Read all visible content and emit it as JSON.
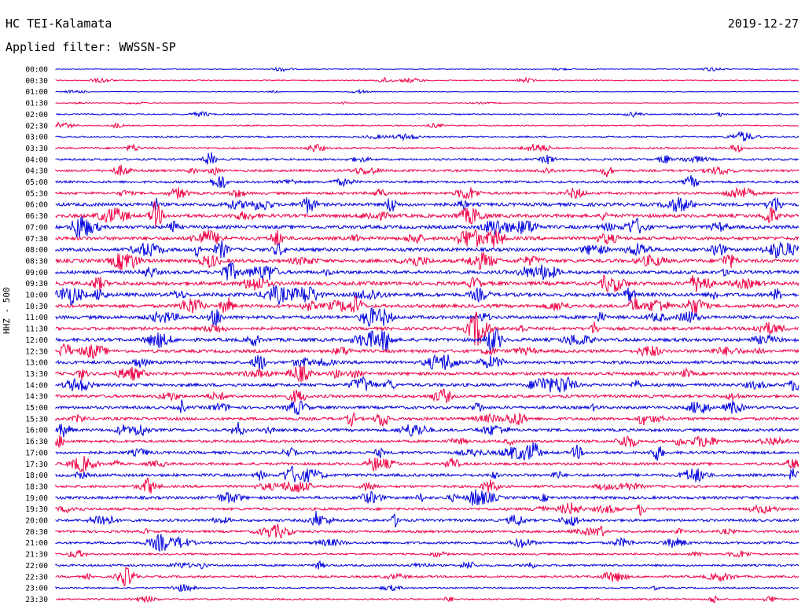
{
  "header": {
    "station": "HC TEI-Kalamata",
    "date": "2019-12-27",
    "filter": "Applied filter: WWSSN-SP"
  },
  "chart_data": {
    "type": "line",
    "title": "HC TEI-Kalamata",
    "subtitle": "Applied filter: WWSSN-SP",
    "ylabel": "HHZ - 500",
    "xlabel": "",
    "trace_labels": [
      "00:00",
      "00:30",
      "01:00",
      "01:30",
      "02:00",
      "02:30",
      "03:00",
      "03:30",
      "04:00",
      "04:30",
      "05:00",
      "05:30",
      "06:00",
      "06:30",
      "07:00",
      "07:30",
      "08:00",
      "08:30",
      "09:00",
      "09:30",
      "10:00",
      "10:30",
      "11:00",
      "11:30",
      "12:00",
      "12:30",
      "13:00",
      "13:30",
      "14:00",
      "14:30",
      "15:00",
      "15:30",
      "16:00",
      "16:30",
      "17:00",
      "17:30",
      "18:00",
      "18:30",
      "19:00",
      "19:30",
      "20:00",
      "20:30",
      "21:00",
      "21:30",
      "22:00",
      "22:30",
      "23:00",
      "23:30"
    ],
    "trace_colors": [
      "#0000dd",
      "#ee0044"
    ],
    "noise_level": [
      0.6,
      0.8,
      0.5,
      0.5,
      1.0,
      1.0,
      1.2,
      1.4,
      1.6,
      1.8,
      1.8,
      2.0,
      2.6,
      2.6,
      2.6,
      2.6,
      2.6,
      2.6,
      2.6,
      2.8,
      2.8,
      2.6,
      2.6,
      2.4,
      2.6,
      2.4,
      2.4,
      2.4,
      2.4,
      2.2,
      2.2,
      2.2,
      2.2,
      2.0,
      2.2,
      2.0,
      2.2,
      2.0,
      2.2,
      2.0,
      2.0,
      1.8,
      1.8,
      1.4,
      1.6,
      1.6,
      1.2,
      1.2
    ],
    "grid": false,
    "legend": "none"
  }
}
